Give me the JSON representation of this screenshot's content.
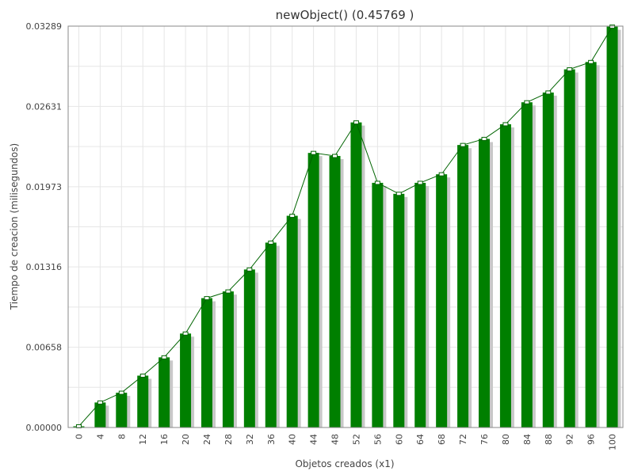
{
  "chart_data": {
    "type": "bar",
    "title": "newObject() (0.45769 )",
    "xlabel": "Objetos creados (x1)",
    "ylabel": "Tiempo de creacion (milisegundos)",
    "categories": [
      "0",
      "4",
      "8",
      "12",
      "16",
      "20",
      "24",
      "28",
      "32",
      "36",
      "40",
      "44",
      "48",
      "52",
      "56",
      "60",
      "64",
      "68",
      "72",
      "76",
      "80",
      "84",
      "88",
      "92",
      "96",
      "100"
    ],
    "values": [
      0.0001,
      0.00205,
      0.00285,
      0.00425,
      0.00575,
      0.0077,
      0.0106,
      0.01115,
      0.01295,
      0.01515,
      0.01735,
      0.0225,
      0.02225,
      0.025,
      0.02005,
      0.01915,
      0.02005,
      0.02075,
      0.02315,
      0.02365,
      0.02485,
      0.02665,
      0.02745,
      0.02935,
      0.02995,
      0.03285
    ],
    "yticks": [
      "0.00000",
      "0.00658",
      "0.01316",
      "0.01973",
      "0.02631",
      "0.03289"
    ],
    "ylim": [
      0,
      0.03289
    ],
    "grid": true,
    "overlay_line": true
  }
}
